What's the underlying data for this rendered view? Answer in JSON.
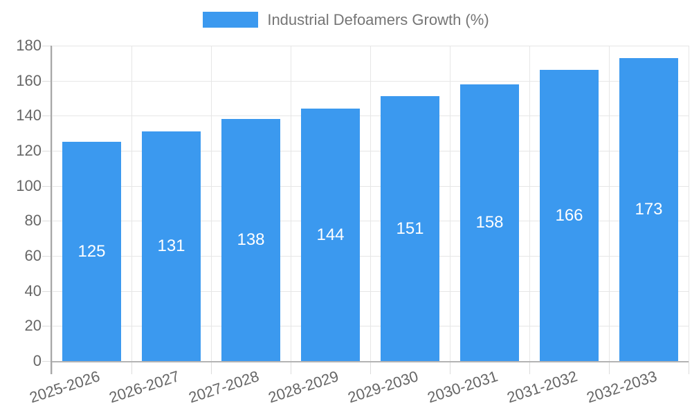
{
  "chart_data": {
    "type": "bar",
    "title": "Industrial Defoamers Growth (%)",
    "categories": [
      "2025-2026",
      "2026-2027",
      "2027-2028",
      "2028-2029",
      "2029-2030",
      "2030-2031",
      "2031-2032",
      "2032-2033"
    ],
    "values": [
      125,
      131,
      138,
      144,
      151,
      158,
      166,
      173
    ],
    "yticks": [
      0,
      20,
      40,
      60,
      80,
      100,
      120,
      140,
      160,
      180
    ],
    "ylim": [
      0,
      180
    ],
    "grid": "on",
    "legend_position": "top-center",
    "xlabel": "",
    "ylabel": "",
    "bar_label_position": "center-inside",
    "x_tick_rotation_deg": -18,
    "colors": {
      "bar": "#3b99ef",
      "bar_value_text": "#ffffff",
      "grid": "#e6e6e6",
      "axis_line": "#b3b3b3",
      "tick_mark": "#dcdcdc",
      "axis_text": "#666666",
      "legend_text": "#757575"
    }
  }
}
